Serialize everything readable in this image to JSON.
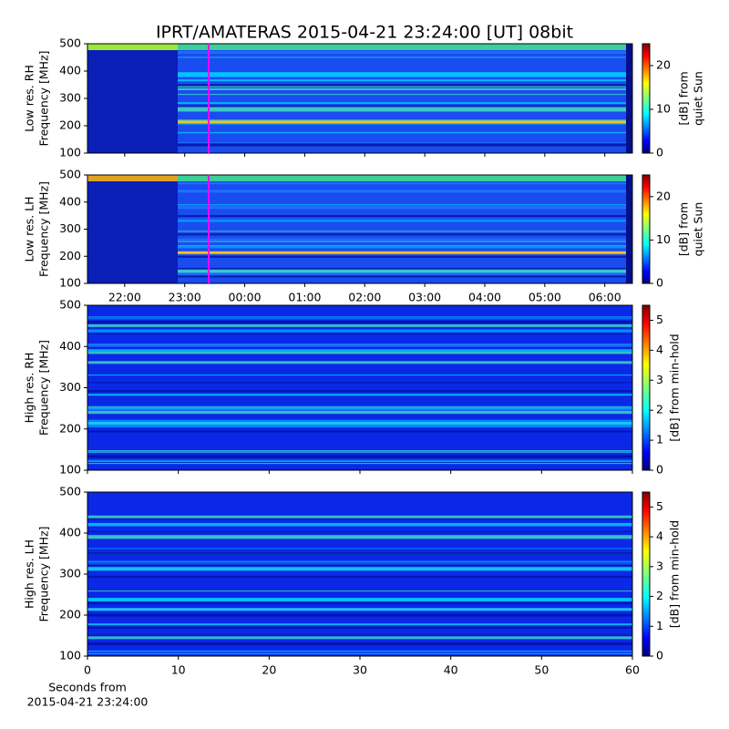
{
  "title": "IPRT/AMATERAS 2015-04-21 23:24:00 [UT]   08bit",
  "chart_data": [
    {
      "type": "heatmap",
      "ylabel": [
        "Low res. RH",
        "Frequency [MHz]"
      ],
      "ylim": [
        100,
        500
      ],
      "yticks": [
        100,
        200,
        300,
        400,
        500
      ],
      "xlim": [
        21.38,
        30.46
      ],
      "marker_x": 23.4,
      "marker_color": "#ff00ff",
      "clabel": [
        "[dB] from",
        "quiet Sun"
      ],
      "clim": [
        0,
        25
      ],
      "cticks": [
        0,
        10,
        20
      ]
    },
    {
      "type": "heatmap",
      "ylabel": [
        "Low res. LH",
        "Frequency [MHz]"
      ],
      "ylim": [
        100,
        500
      ],
      "yticks": [
        100,
        200,
        300,
        400,
        500
      ],
      "xlim": [
        21.38,
        30.46
      ],
      "marker_x": 23.4,
      "marker_color": "#ff00ff",
      "xticks": [
        {
          "value": 22,
          "label": "22:00"
        },
        {
          "value": 23,
          "label": "23:00"
        },
        {
          "value": 24,
          "label": "00:00"
        },
        {
          "value": 25,
          "label": "01:00"
        },
        {
          "value": 26,
          "label": "02:00"
        },
        {
          "value": 27,
          "label": "03:00"
        },
        {
          "value": 28,
          "label": "04:00"
        },
        {
          "value": 29,
          "label": "05:00"
        },
        {
          "value": 30,
          "label": "06:00"
        }
      ],
      "clabel": [
        "[dB] from",
        "quiet Sun"
      ],
      "clim": [
        0,
        25
      ],
      "cticks": [
        0,
        10,
        20
      ]
    },
    {
      "type": "heatmap",
      "ylabel": [
        "High res. RH",
        "Frequency [MHz]"
      ],
      "ylim": [
        100,
        500
      ],
      "yticks": [
        100,
        200,
        300,
        400,
        500
      ],
      "xlim": [
        0,
        60
      ],
      "clabel": [
        "[dB] from min-hold"
      ],
      "clim": [
        0,
        5.5
      ],
      "cticks": [
        0,
        1,
        2,
        3,
        4,
        5
      ]
    },
    {
      "type": "heatmap",
      "ylabel": [
        "High res. LH",
        "Frequency [MHz]"
      ],
      "ylim": [
        100,
        500
      ],
      "yticks": [
        100,
        200,
        300,
        400,
        500
      ],
      "xlim": [
        0,
        60
      ],
      "xticks": [
        0,
        10,
        20,
        30,
        40,
        50,
        60
      ],
      "xlabel": [
        "Seconds from",
        "2015-04-21 23:24:00"
      ],
      "clabel": [
        "[dB] from min-hold"
      ],
      "clim": [
        0,
        5.5
      ],
      "cticks": [
        0,
        1,
        2,
        3,
        4,
        5
      ]
    }
  ]
}
